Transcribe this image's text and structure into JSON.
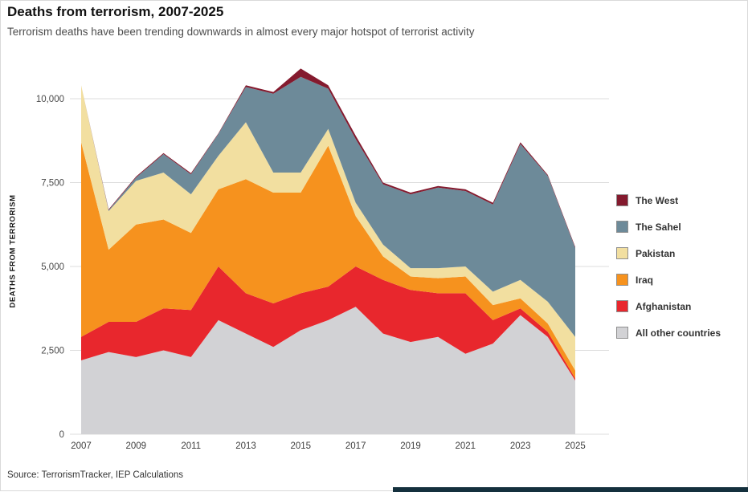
{
  "footer": {
    "source": "Source: TerrorismTracker, IEP Calculations"
  },
  "colors": {
    "accent_strip": "#14303d"
  },
  "chart_data": {
    "type": "area",
    "stacked": true,
    "title": "Deaths from terrorism, 2007-2025",
    "subtitle": "Terrorism deaths have been trending downwards in almost every major hotspot of terrorist activity",
    "ylabel": "DEATHS FROM TERRORISM",
    "xlabel": "",
    "grid": "horizontal",
    "legend_position": "right",
    "ylim": [
      0,
      11200
    ],
    "ytick_values": [
      0,
      2500,
      5000,
      7500,
      10000
    ],
    "ytick_labels": [
      "0",
      "2,500",
      "5,000",
      "7,500",
      "10,000"
    ],
    "x": [
      2007,
      2008,
      2009,
      2010,
      2011,
      2012,
      2013,
      2014,
      2015,
      2016,
      2017,
      2018,
      2019,
      2020,
      2021,
      2022,
      2023,
      2024,
      2025
    ],
    "xtick_labels": [
      "2007",
      "2009",
      "2011",
      "2013",
      "2015",
      "2017",
      "2019",
      "2021",
      "2023",
      "2025"
    ],
    "series": [
      {
        "id": "all-other-countries",
        "name": "All other countries",
        "color": "#d2d2d5",
        "values": [
          2200,
          2450,
          2300,
          2500,
          2300,
          3400,
          3000,
          2600,
          3100,
          3400,
          3800,
          3000,
          2750,
          2900,
          2400,
          2700,
          3550,
          2900,
          1600
        ]
      },
      {
        "id": "afghanistan",
        "name": "Afghanistan",
        "color": "#e8272d",
        "values": [
          700,
          900,
          1050,
          1250,
          1400,
          1600,
          1200,
          1300,
          1100,
          1000,
          1200,
          1600,
          1550,
          1300,
          1800,
          700,
          200,
          150,
          60
        ]
      },
      {
        "id": "iraq",
        "name": "Iraq",
        "color": "#f6921e",
        "values": [
          5800,
          2150,
          2900,
          2650,
          2300,
          2300,
          3400,
          3300,
          3000,
          4200,
          1500,
          700,
          400,
          450,
          500,
          450,
          300,
          250,
          240
        ]
      },
      {
        "id": "pakistan",
        "name": "Pakistan",
        "color": "#f2dfa0",
        "values": [
          1700,
          1150,
          1300,
          1400,
          1150,
          1000,
          1700,
          600,
          600,
          500,
          400,
          350,
          250,
          300,
          300,
          400,
          550,
          650,
          1000
        ]
      },
      {
        "id": "the-sahel",
        "name": "The Sahel",
        "color": "#6d8a99",
        "values": [
          0,
          30,
          100,
          550,
          600,
          650,
          1050,
          2350,
          2850,
          1200,
          1900,
          1800,
          2200,
          2400,
          2250,
          2600,
          4050,
          3750,
          2650
        ]
      },
      {
        "id": "the-west",
        "name": "The West",
        "color": "#841a2e",
        "values": [
          0,
          20,
          30,
          30,
          30,
          20,
          50,
          50,
          250,
          100,
          100,
          50,
          50,
          50,
          50,
          50,
          50,
          30,
          30
        ]
      }
    ],
    "legend": [
      {
        "label": "The West",
        "color": "#841a2e"
      },
      {
        "label": "The Sahel",
        "color": "#6d8a99"
      },
      {
        "label": "Pakistan",
        "color": "#f2dfa0"
      },
      {
        "label": "Iraq",
        "color": "#f6921e"
      },
      {
        "label": "Afghanistan",
        "color": "#e8272d"
      },
      {
        "label": "All other countries",
        "color": "#d2d2d5"
      }
    ]
  }
}
